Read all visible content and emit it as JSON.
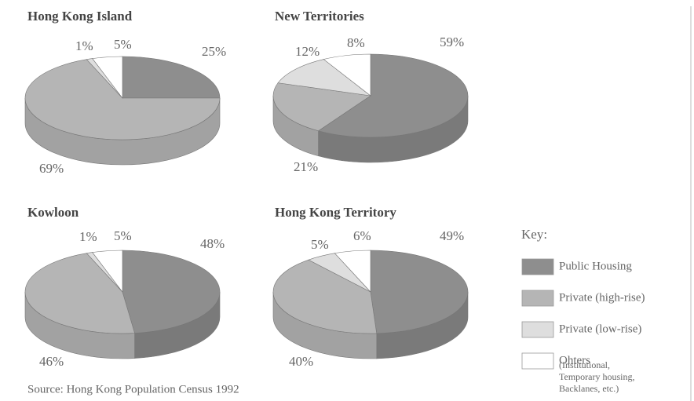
{
  "chart_data": [
    {
      "type": "pie",
      "title": "Hong Kong Island",
      "values": [
        25,
        69,
        1,
        5
      ],
      "value_labels": [
        "25%",
        "69%",
        "1%",
        "5%"
      ]
    },
    {
      "type": "pie",
      "title": "New Territories",
      "values": [
        59,
        21,
        12,
        8
      ],
      "value_labels": [
        "59%",
        "21%",
        "12%",
        "8%"
      ]
    },
    {
      "type": "pie",
      "title": "Kowloon",
      "values": [
        48,
        46,
        1,
        5
      ],
      "value_labels": [
        "48%",
        "46%",
        "1%",
        "5%"
      ]
    },
    {
      "type": "pie",
      "title": "Hong Kong Territory",
      "values": [
        49,
        40,
        5,
        6
      ],
      "value_labels": [
        "49%",
        "40%",
        "5%",
        "6%"
      ]
    }
  ],
  "key": {
    "title": "Key:",
    "categories": [
      "Public Housing",
      "Private (high-rise)",
      "Private (low-rise)",
      "Ohters"
    ],
    "colors": [
      "#8e8e8e",
      "#b5b5b5",
      "#dedede",
      "#ffffff"
    ],
    "side_colors": [
      "#7a7a7a",
      "#a2a2a2",
      "#cacaca",
      "#eeeeee"
    ],
    "note": [
      "(Institutional,",
      "Temporary housing,",
      "Backlanes, etc.)"
    ]
  },
  "source": "Source: Hong Kong Population Census 1992"
}
